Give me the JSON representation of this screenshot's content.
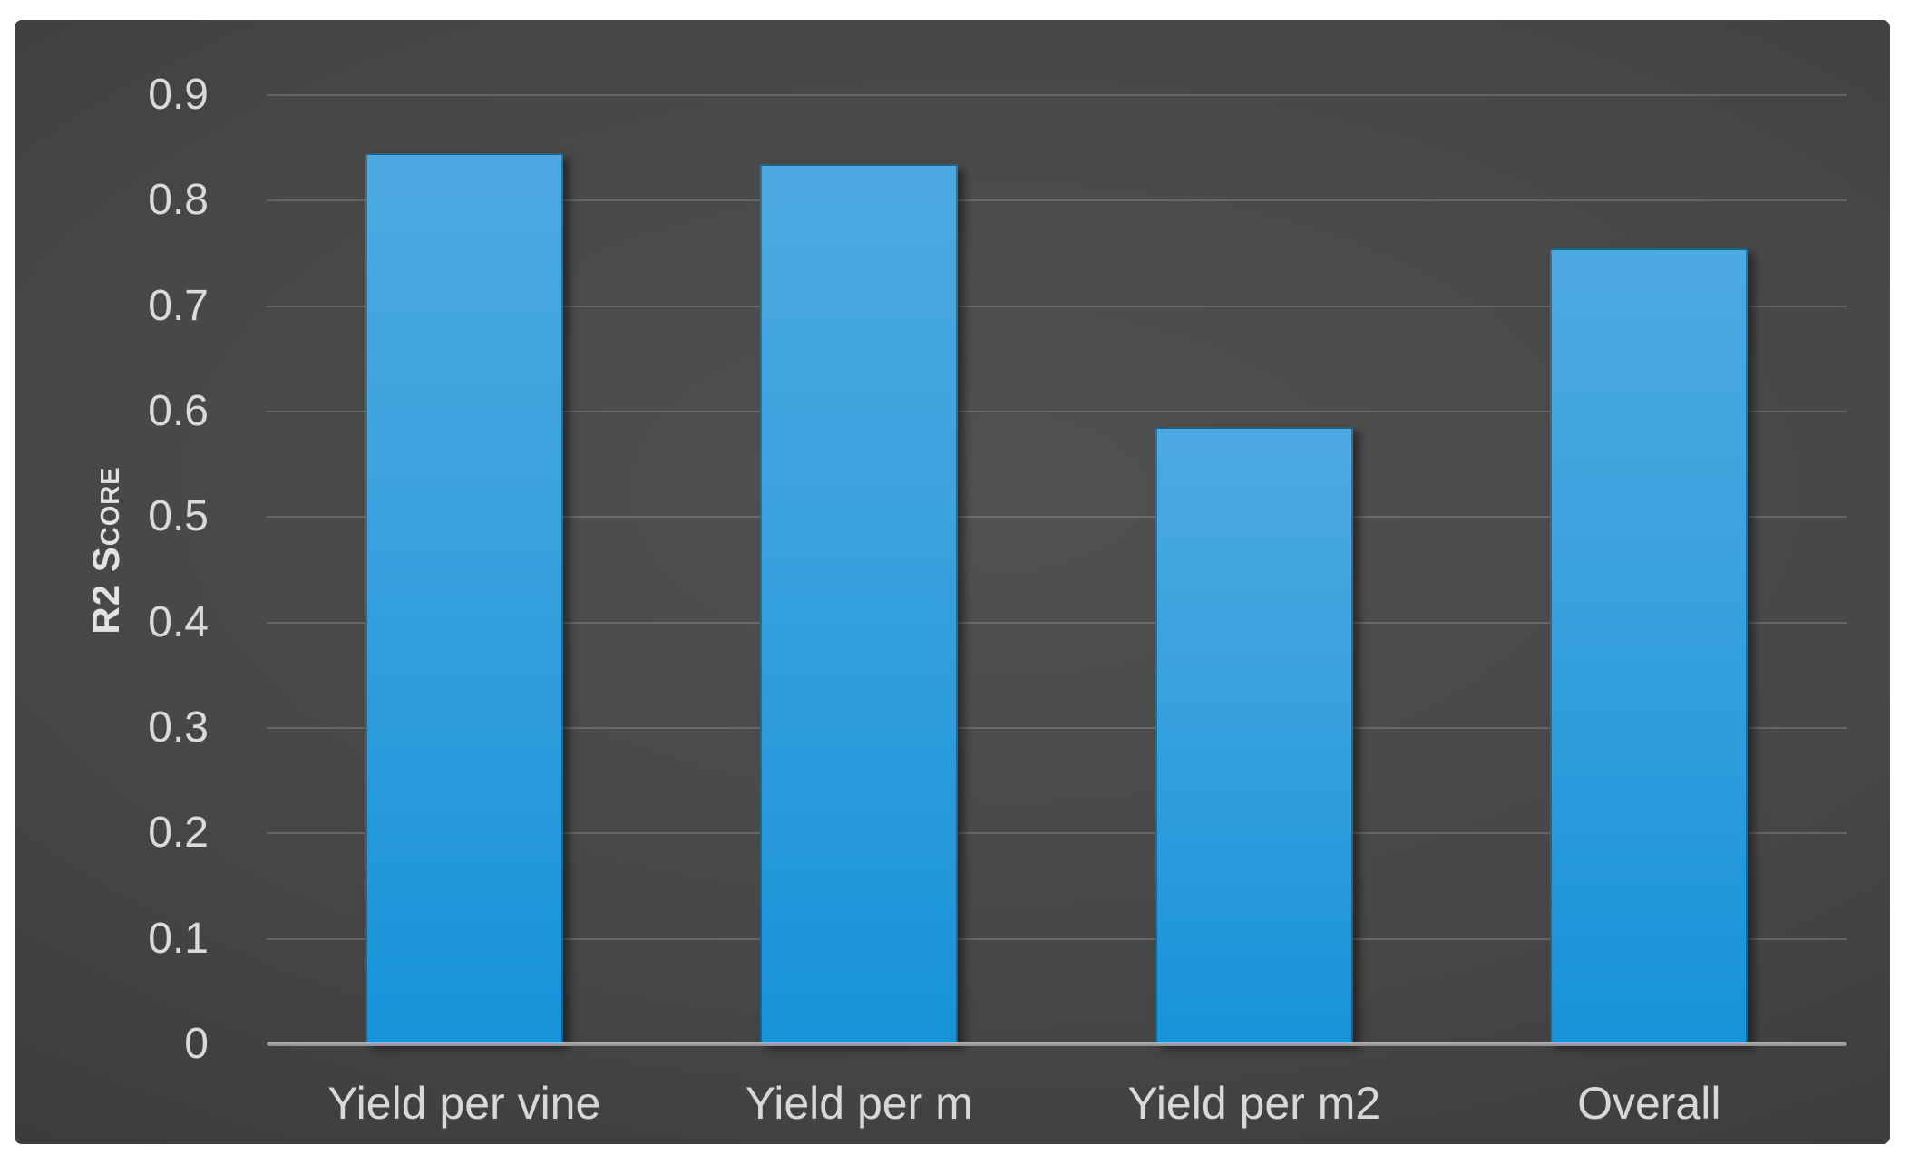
{
  "page": {
    "background": "#ffffff"
  },
  "chart": {
    "background_center_color": "#515151",
    "background_edge_color": "#242424",
    "gridline_color": "#606060",
    "axis_line_color": "#a3a3a3",
    "tick_text_color": "#dadada",
    "category_text_color": "#d8d8d8",
    "bar_top_color": "#4da9e1",
    "bar_bottom_color": "#1793d9"
  },
  "chart_data": {
    "type": "bar",
    "categories": [
      "Yield per vine",
      "Yield per m",
      "Yield per m2",
      "Overall"
    ],
    "values": [
      0.845,
      0.835,
      0.585,
      0.755
    ],
    "title": "",
    "xlabel": "",
    "ylabel": "R2 Score",
    "ylim": [
      0,
      0.9
    ],
    "yticks": [
      0,
      0.1,
      0.2,
      0.3,
      0.4,
      0.5,
      0.6,
      0.7,
      0.8,
      0.9
    ],
    "grid": true,
    "legend": false
  }
}
